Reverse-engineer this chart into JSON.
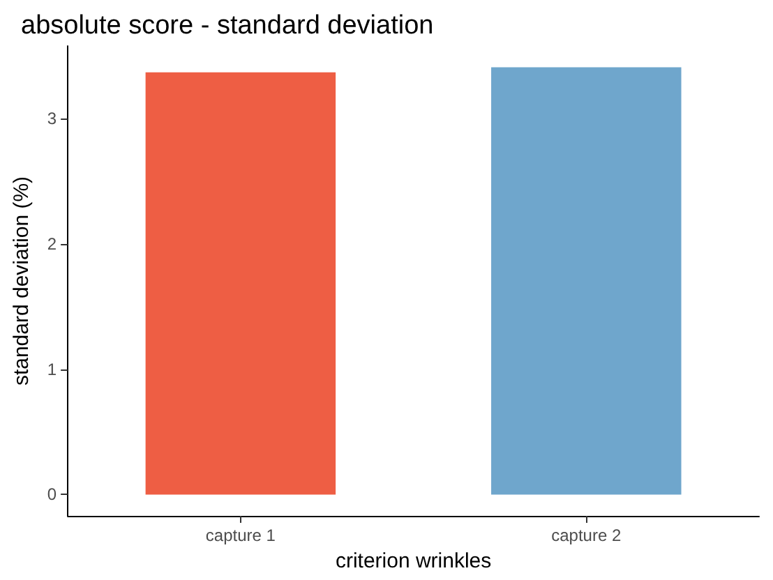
{
  "chart_data": {
    "type": "bar",
    "title": "absolute score - standard deviation",
    "xlabel": "criterion wrinkles",
    "ylabel": "standard deviation (%)",
    "categories": [
      "capture 1",
      "capture 2"
    ],
    "values": [
      3.37,
      3.41
    ],
    "colors": [
      "#ee5e44",
      "#6fa6cc"
    ],
    "ylim": [
      -0.17,
      3.58
    ],
    "yticks": [
      0,
      1,
      2,
      3
    ],
    "grid": false
  }
}
